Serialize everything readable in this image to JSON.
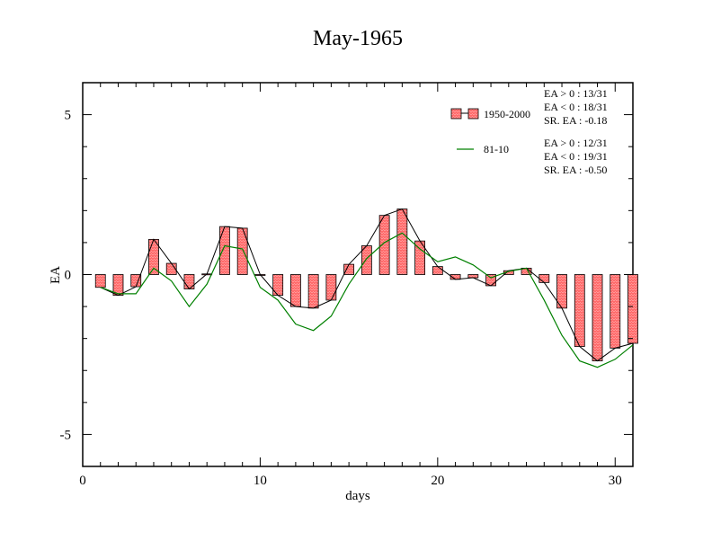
{
  "chart_data": {
    "type": "bar",
    "title": "May-1965",
    "xlabel": "days",
    "ylabel": "EA",
    "xlim": [
      0,
      31
    ],
    "ylim": [
      -6,
      6
    ],
    "xticks": [
      0,
      10,
      20,
      30
    ],
    "yticks": [
      -5,
      0,
      5
    ],
    "grid": false,
    "legend_position": "top-right",
    "x": [
      1,
      2,
      3,
      4,
      5,
      6,
      7,
      8,
      9,
      10,
      11,
      12,
      13,
      14,
      15,
      16,
      17,
      18,
      19,
      20,
      21,
      22,
      23,
      24,
      25,
      26,
      27,
      28,
      29,
      30,
      31
    ],
    "series": [
      {
        "name": "1950-2000",
        "kind": "bar",
        "color": "#ff6666",
        "values": [
          -0.4,
          -0.65,
          -0.38,
          1.1,
          0.35,
          -0.45,
          0.02,
          1.5,
          1.45,
          0.0,
          -0.65,
          -1.0,
          -1.05,
          -0.8,
          0.32,
          0.9,
          1.85,
          2.05,
          1.05,
          0.25,
          -0.15,
          -0.1,
          -0.35,
          0.12,
          0.2,
          -0.25,
          -1.05,
          -2.25,
          -2.7,
          -2.3,
          -2.15
        ],
        "stats": [
          "EA > 0 : 13/31",
          "EA < 0 : 18/31",
          "SR. EA : -0.18"
        ]
      },
      {
        "name": "81-10",
        "kind": "line",
        "color": "#008000",
        "values": [
          -0.4,
          -0.6,
          -0.6,
          0.2,
          -0.2,
          -1.0,
          -0.3,
          0.9,
          0.8,
          -0.4,
          -0.8,
          -1.55,
          -1.75,
          -1.3,
          -0.3,
          0.5,
          1.0,
          1.3,
          0.8,
          0.4,
          0.55,
          0.3,
          -0.1,
          0.1,
          0.2,
          -0.8,
          -1.9,
          -2.7,
          -2.9,
          -2.65,
          -2.2
        ],
        "stats": [
          "EA > 0 : 12/31",
          "EA < 0 : 19/31",
          "SR. EA : -0.50"
        ]
      }
    ]
  }
}
